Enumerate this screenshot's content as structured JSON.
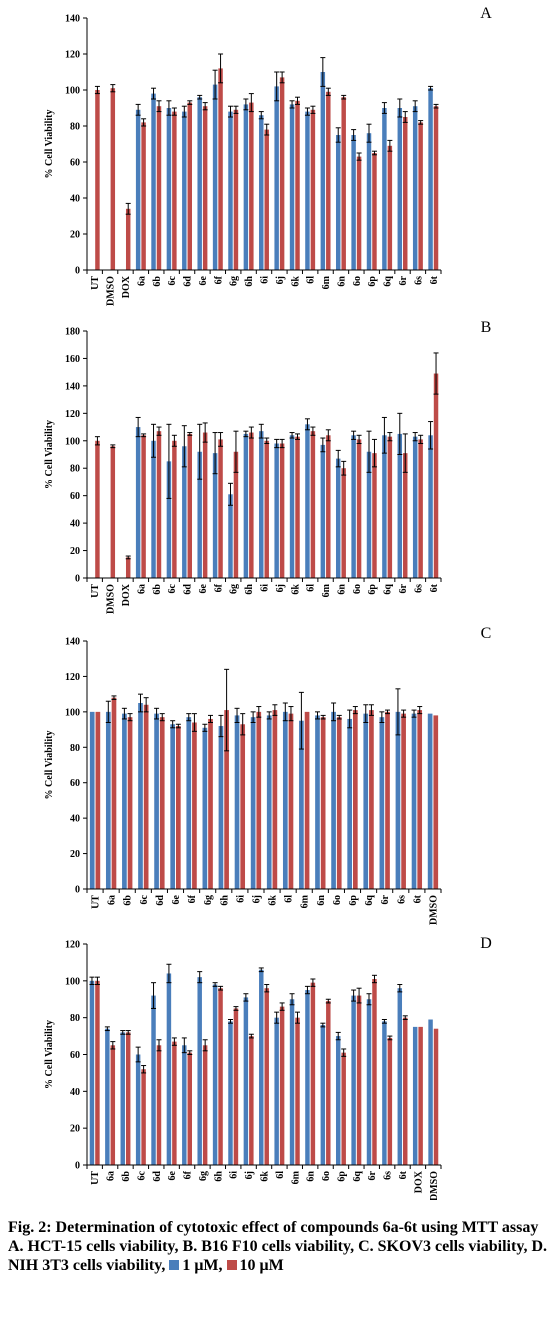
{
  "colors": {
    "series1": "#4a7ebb",
    "series2": "#be4b48",
    "error": "#000000",
    "axis": "#000000"
  },
  "caption": {
    "title": "Fig. 2: Determination of cytotoxic effect of compounds 6a-6t using MTT assay",
    "desc": "A. HCT-15 cells viability, B. B16 F10 cells viability, C. SKOV3 cells viability, D. NIH 3T3 cells viability,",
    "legend_1": "1 μM,",
    "legend_2": "10 μM"
  },
  "chart_data": [
    {
      "type": "bar",
      "panel_label": "A",
      "ylabel": "% Cell Viability",
      "ylim": [
        0,
        140
      ],
      "yticks": [
        0,
        20,
        40,
        60,
        80,
        100,
        120,
        140
      ],
      "categories": [
        "UT",
        "DMSO",
        "DOX",
        "6a",
        "6b",
        "6c",
        "6d",
        "6e",
        "6f",
        "6g",
        "6h",
        "6i",
        "6j",
        "6k",
        "6l",
        "6m",
        "6n",
        "6o",
        "6p",
        "6q",
        "6r",
        "6s",
        "6t"
      ],
      "series": [
        {
          "name": "1 μM",
          "values": [
            null,
            null,
            null,
            89,
            98,
            90,
            88,
            96,
            103,
            88,
            92,
            86,
            102,
            92,
            88,
            110,
            75,
            75,
            76,
            90,
            90,
            91,
            101
          ],
          "errors": [
            0,
            0,
            0,
            3,
            3,
            4,
            3,
            1,
            8,
            3,
            3,
            2,
            8,
            2,
            2,
            8,
            4,
            3,
            5,
            3,
            5,
            3,
            1
          ]
        },
        {
          "name": "10 μM",
          "values": [
            100,
            101,
            34,
            82,
            91,
            88,
            93,
            91,
            112,
            89,
            93,
            78,
            107,
            94,
            89,
            99,
            96,
            63,
            65,
            69,
            85,
            82,
            91
          ],
          "errors": [
            2,
            2,
            3,
            2,
            3,
            2,
            1,
            2,
            8,
            2,
            5,
            3,
            3,
            2,
            2,
            2,
            1,
            2,
            1,
            3,
            3,
            1,
            1
          ]
        }
      ]
    },
    {
      "type": "bar",
      "panel_label": "B",
      "ylabel": "% Cell Viability",
      "ylim": [
        0,
        180
      ],
      "yticks": [
        0,
        20,
        40,
        60,
        80,
        100,
        120,
        140,
        160,
        180
      ],
      "categories": [
        "UT",
        "DMSO",
        "DOX",
        "6a",
        "6b",
        "6c",
        "6d",
        "6e",
        "6f",
        "6g",
        "6h",
        "6i",
        "6j",
        "6k",
        "6l",
        "6m",
        "6n",
        "6o",
        "6p",
        "6q",
        "6r",
        "6s",
        "6t"
      ],
      "series": [
        {
          "name": "1 μM",
          "values": [
            null,
            null,
            null,
            110,
            100,
            85,
            96,
            92,
            91,
            61,
            105,
            107,
            98,
            104,
            112,
            97,
            87,
            104,
            92,
            104,
            105,
            103,
            104
          ],
          "errors": [
            0,
            0,
            0,
            7,
            12,
            27,
            15,
            20,
            15,
            8,
            2,
            5,
            3,
            2,
            4,
            5,
            6,
            3,
            15,
            13,
            15,
            3,
            10
          ]
        },
        {
          "name": "10 μM",
          "values": [
            100,
            96,
            15,
            104,
            107,
            100,
            105,
            106,
            101,
            92,
            106,
            100,
            98,
            103,
            107,
            104,
            80,
            101,
            91,
            103,
            91,
            101,
            149
          ],
          "errors": [
            3,
            1,
            1,
            1,
            3,
            4,
            1,
            7,
            5,
            15,
            4,
            2,
            3,
            2,
            3,
            4,
            5,
            3,
            10,
            3,
            14,
            3,
            15
          ]
        }
      ]
    },
    {
      "type": "bar",
      "panel_label": "C",
      "ylabel": "% Cell Viability",
      "ylim": [
        0,
        140
      ],
      "yticks": [
        0,
        20,
        40,
        60,
        80,
        100,
        120,
        140
      ],
      "categories": [
        "UT",
        "6a",
        "6b",
        "6c",
        "6d",
        "6e",
        "6f",
        "6g",
        "6h",
        "6i",
        "6j",
        "6k",
        "6l",
        "6m",
        "6n",
        "6o",
        "6p",
        "6q",
        "6r",
        "6s",
        "6t",
        "DMSO"
      ],
      "series": [
        {
          "name": "1 μM",
          "values": [
            100,
            100,
            99,
            105,
            99,
            93,
            97,
            91,
            92,
            98,
            97,
            98,
            100,
            95,
            98,
            100,
            96,
            99,
            97,
            100,
            99,
            99
          ],
          "errors": [
            0,
            6,
            3,
            5,
            3,
            2,
            2,
            2,
            6,
            4,
            3,
            2,
            5,
            16,
            2,
            5,
            5,
            5,
            3,
            13,
            2,
            0
          ]
        },
        {
          "name": "10 μM",
          "values": [
            100,
            108,
            97,
            104,
            97,
            92,
            94,
            96,
            101,
            93,
            100,
            101,
            99,
            100,
            97,
            97,
            101,
            101,
            100,
            99,
            101,
            98
          ],
          "errors": [
            0,
            1,
            2,
            4,
            2,
            1,
            5,
            2,
            23,
            6,
            3,
            3,
            4,
            0,
            1,
            1,
            2,
            3,
            1,
            2,
            2,
            0
          ]
        }
      ]
    },
    {
      "type": "bar",
      "panel_label": "D",
      "ylabel": "% Cell Viability",
      "ylim": [
        0,
        120
      ],
      "yticks": [
        0,
        20,
        40,
        60,
        80,
        100,
        120
      ],
      "categories": [
        "UT",
        "6a",
        "6b",
        "6c",
        "6d",
        "6e",
        "6f",
        "6g",
        "6h",
        "6i",
        "6j",
        "6k",
        "6l",
        "6m",
        "6n",
        "6o",
        "6p",
        "6q",
        "6r",
        "6s",
        "6t",
        "DOX",
        "DMSO"
      ],
      "series": [
        {
          "name": "1 μM",
          "values": [
            100,
            74,
            72,
            60,
            92,
            104,
            65,
            102,
            98,
            78,
            91,
            106,
            80,
            90,
            95,
            76,
            70,
            92,
            90,
            78,
            96,
            75,
            79
          ],
          "errors": [
            2,
            1,
            1,
            4,
            7,
            5,
            4,
            3,
            1,
            1,
            2,
            1,
            3,
            3,
            2,
            1,
            2,
            3,
            3,
            1,
            2,
            0,
            0
          ]
        },
        {
          "name": "10 μM",
          "values": [
            100,
            65,
            72,
            52,
            65,
            67,
            61,
            65,
            96,
            85,
            70,
            96,
            86,
            80,
            99,
            89,
            61,
            92,
            101,
            69,
            80,
            75,
            74
          ],
          "errors": [
            2,
            2,
            1,
            2,
            3,
            2,
            1,
            3,
            1,
            1,
            1,
            2,
            2,
            3,
            2,
            1,
            2,
            4,
            2,
            1,
            1,
            0,
            0
          ]
        }
      ]
    }
  ]
}
